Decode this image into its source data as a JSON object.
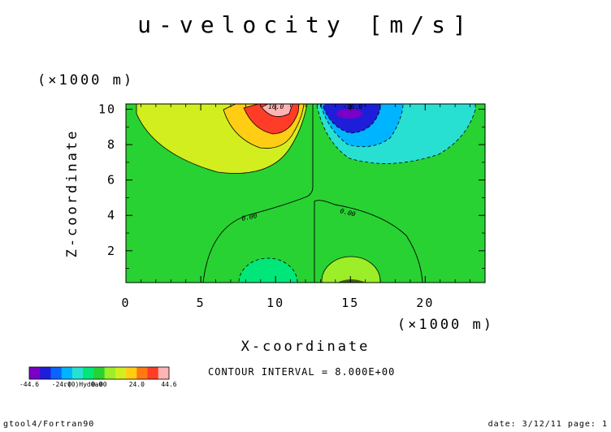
{
  "chart_data": {
    "type": "contour",
    "title": "u-velocity [m/s]",
    "xlabel": "X-coordinate",
    "ylabel": "Z-coordinate",
    "x_unit": "(×1000 m)",
    "y_unit": "(×1000 m)",
    "xlim": [
      0,
      24
    ],
    "ylim": [
      0.2,
      10.3
    ],
    "x_ticks": [
      {
        "value": 0,
        "label": "0"
      },
      {
        "value": 5,
        "label": "5"
      },
      {
        "value": 10,
        "label": "10"
      },
      {
        "value": 15,
        "label": "15"
      },
      {
        "value": 20,
        "label": "20"
      }
    ],
    "y_ticks": [
      {
        "value": 2,
        "label": "2"
      },
      {
        "value": 4,
        "label": "4"
      },
      {
        "value": 6,
        "label": "6"
      },
      {
        "value": 8,
        "label": "8"
      },
      {
        "value": 10,
        "label": "10"
      }
    ],
    "contour_interval_text": "CONTOUR INTERVAL = 8.000E+00",
    "contour_labels": [
      {
        "text": "16.0",
        "x": 10.0,
        "y": 10.0
      },
      {
        "text": "-16.0",
        "x": 15.5,
        "y": 10.0
      },
      {
        "text": "0.00",
        "x": 8.5,
        "y": 3.3
      },
      {
        "text": "0.00",
        "x": 14.8,
        "y": 3.8
      }
    ],
    "features": [
      {
        "kind": "positive-max",
        "x": 10.3,
        "z": 9.9,
        "value": 44.6
      },
      {
        "kind": "negative-min",
        "x": 15.2,
        "z": 9.6,
        "value": -44.6
      },
      {
        "kind": "positive-lobe",
        "x": 16.0,
        "z": 0.8,
        "value": 10
      },
      {
        "kind": "negative-lobe",
        "x": 9.5,
        "z": 0.8,
        "value": -10
      }
    ],
    "colorbar": {
      "levels": [
        -44.6,
        -40,
        -32,
        -24,
        -16,
        -8,
        0,
        8,
        16,
        24,
        32,
        40,
        44.6
      ],
      "colors": [
        "#7a00c8",
        "#1e1ed8",
        "#0a64ff",
        "#00b4ff",
        "#28e0d2",
        "#00e678",
        "#28d232",
        "#9bee28",
        "#d2ee1e",
        "#ffcd14",
        "#ff7814",
        "#ff3c28",
        "#ffb4b4"
      ],
      "labels": [
        {
          "text": "-44.6",
          "value": -44.6
        },
        {
          "text": "-24.0",
          "value": -24
        },
        {
          "text": "0.00",
          "value": 0
        },
        {
          "text": "24.0",
          "value": 24
        },
        {
          "text": "44.6",
          "value": 44.6
        }
      ],
      "overlap_text": "r(0)Hyd0a0"
    }
  },
  "footer": {
    "left": "gtool4/Fortran90",
    "right": "date: 3/12/11 page: 1"
  }
}
